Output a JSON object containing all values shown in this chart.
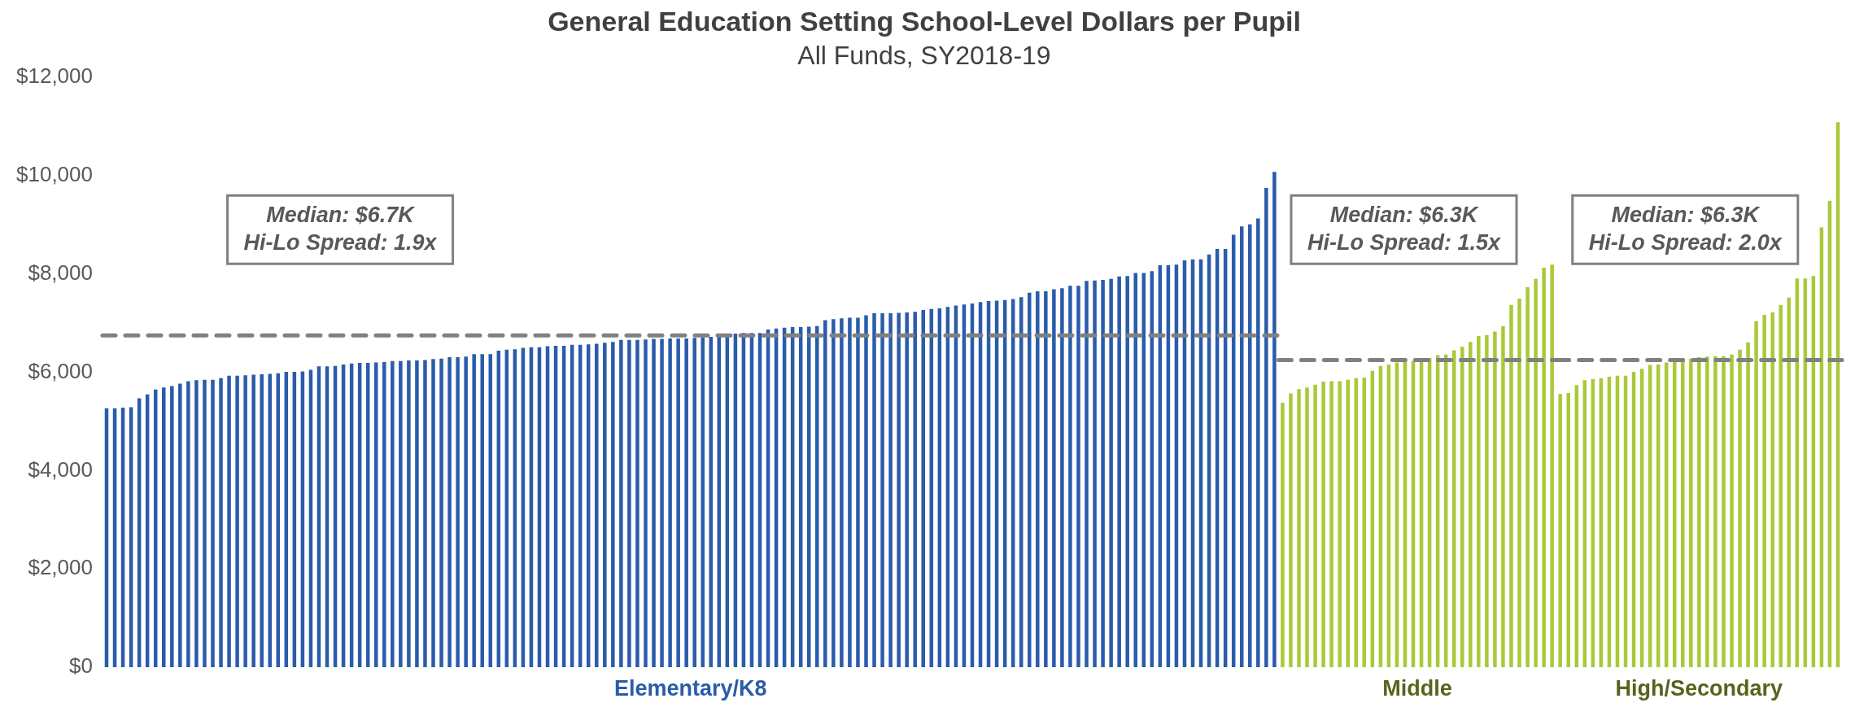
{
  "chart_data": {
    "type": "bar",
    "title": "General Education Setting School-Level Dollars per Pupil",
    "subtitle": "All Funds, SY2018-19",
    "categories": [
      null,
      null,
      null,
      null,
      null,
      null,
      null,
      null,
      null,
      null,
      null,
      null,
      null,
      null,
      null,
      null,
      null,
      null,
      null,
      null,
      null,
      null,
      null,
      null,
      null,
      null,
      null,
      null,
      null,
      null,
      null,
      null,
      null,
      null,
      null,
      null,
      null,
      null,
      null,
      null,
      null,
      null,
      null,
      null,
      null,
      null,
      null,
      null,
      null,
      null,
      null,
      null,
      null,
      null,
      null,
      null,
      null,
      null,
      null,
      null,
      null,
      null,
      null,
      null,
      null,
      null,
      null,
      null,
      null,
      null,
      null,
      null,
      null,
      null,
      null,
      null,
      null,
      null,
      null,
      null,
      null,
      null,
      null,
      null,
      null,
      null,
      null,
      null,
      null,
      null,
      null,
      null,
      null,
      null,
      null,
      null,
      null,
      null,
      null,
      null,
      null,
      null,
      null,
      null,
      null,
      null,
      null,
      null,
      null,
      null,
      null,
      null,
      null,
      null,
      null,
      null,
      null,
      null,
      null,
      null,
      null,
      null,
      null,
      null,
      null,
      null,
      null,
      null,
      null,
      null,
      null,
      null,
      null,
      null,
      null,
      null,
      null,
      null,
      null,
      null,
      null,
      null,
      null,
      null,
      null,
      null,
      null,
      null,
      null,
      null,
      null,
      null,
      null,
      null,
      null,
      null,
      null,
      null,
      null,
      null,
      null,
      null,
      null,
      null,
      null,
      null,
      null,
      null,
      null,
      null,
      null,
      null,
      null,
      null,
      null,
      null,
      null,
      null,
      null,
      null,
      null,
      null,
      null,
      null,
      null,
      null,
      null,
      null,
      null,
      null,
      null,
      null,
      null,
      null,
      null,
      null,
      null,
      null,
      null,
      null,
      null,
      null,
      null,
      null,
      null,
      null,
      null,
      null,
      null,
      null,
      null,
      null,
      null
    ],
    "values": [
      5270,
      5270,
      5280,
      5290,
      5470,
      5550,
      5650,
      5690,
      5720,
      5770,
      5820,
      5840,
      5850,
      5850,
      5880,
      5930,
      5930,
      5940,
      5950,
      5960,
      5970,
      5980,
      6010,
      6010,
      6020,
      6050,
      6120,
      6120,
      6130,
      6160,
      6180,
      6190,
      6190,
      6200,
      6210,
      6230,
      6230,
      6240,
      6240,
      6250,
      6270,
      6280,
      6310,
      6310,
      6320,
      6370,
      6370,
      6370,
      6440,
      6460,
      6470,
      6500,
      6510,
      6510,
      6530,
      6540,
      6540,
      6560,
      6560,
      6570,
      6580,
      6600,
      6620,
      6660,
      6660,
      6660,
      6670,
      6680,
      6680,
      6690,
      6690,
      6690,
      6700,
      6710,
      6720,
      6720,
      6780,
      6790,
      6800,
      6800,
      6800,
      6870,
      6890,
      6910,
      6920,
      6920,
      6930,
      6940,
      7060,
      7080,
      7100,
      7110,
      7110,
      7160,
      7200,
      7200,
      7200,
      7210,
      7220,
      7230,
      7270,
      7290,
      7300,
      7330,
      7360,
      7380,
      7400,
      7430,
      7450,
      7460,
      7470,
      7490,
      7530,
      7620,
      7650,
      7650,
      7690,
      7710,
      7760,
      7760,
      7860,
      7870,
      7880,
      7900,
      7950,
      7960,
      8020,
      8020,
      8060,
      8180,
      8180,
      8190,
      8280,
      8300,
      8300,
      8400,
      8510,
      8510,
      8800,
      8970,
      9010,
      9130,
      9750,
      10080,
      5380,
      5570,
      5660,
      5690,
      5750,
      5810,
      5820,
      5820,
      5850,
      5880,
      5890,
      6030,
      6130,
      6160,
      6200,
      6220,
      6230,
      6260,
      6290,
      6350,
      6360,
      6450,
      6520,
      6620,
      6740,
      6760,
      6830,
      6940,
      7370,
      7500,
      7730,
      7900,
      8130,
      8190,
      5560,
      5580,
      5740,
      5840,
      5860,
      5880,
      5910,
      5930,
      5930,
      6010,
      6070,
      6150,
      6160,
      6200,
      6210,
      6260,
      6280,
      6310,
      6320,
      6330,
      6330,
      6360,
      6460,
      6610,
      7040,
      7170,
      7220,
      7370,
      7520,
      7910,
      7910,
      7960,
      8950,
      9490,
      11090
    ],
    "colors": [
      "#2a5caa",
      "#2a5caa",
      "#2a5caa",
      "#2a5caa",
      "#2a5caa",
      "#2a5caa",
      "#2a5caa",
      "#2a5caa",
      "#2a5caa",
      "#2a5caa",
      "#2a5caa",
      "#2a5caa",
      "#2a5caa",
      "#2a5caa",
      "#2a5caa",
      "#2a5caa",
      "#2a5caa",
      "#2a5caa",
      "#2a5caa",
      "#2a5caa",
      "#2a5caa",
      "#2a5caa",
      "#2a5caa",
      "#2a5caa",
      "#2a5caa",
      "#2a5caa",
      "#2a5caa",
      "#2a5caa",
      "#2a5caa",
      "#2a5caa",
      "#2a5caa",
      "#2a5caa",
      "#2a5caa",
      "#2a5caa",
      "#2a5caa",
      "#2a5caa",
      "#2a5caa",
      "#2a5caa",
      "#2a5caa",
      "#2a5caa",
      "#2a5caa",
      "#2a5caa",
      "#2a5caa",
      "#2a5caa",
      "#2a5caa",
      "#2a5caa",
      "#2a5caa",
      "#2a5caa",
      "#2a5caa",
      "#2a5caa",
      "#2a5caa",
      "#2a5caa",
      "#2a5caa",
      "#2a5caa",
      "#2a5caa",
      "#2a5caa",
      "#2a5caa",
      "#2a5caa",
      "#2a5caa",
      "#2a5caa",
      "#2a5caa",
      "#2a5caa",
      "#2a5caa",
      "#2a5caa",
      "#2a5caa",
      "#2a5caa",
      "#2a5caa",
      "#2a5caa",
      "#2a5caa",
      "#2a5caa",
      "#2a5caa",
      "#2a5caa",
      "#2a5caa",
      "#2a5caa",
      "#2a5caa",
      "#2a5caa",
      "#2a5caa",
      "#2a5caa",
      "#2a5caa",
      "#2a5caa",
      "#2a5caa",
      "#2a5caa",
      "#2a5caa",
      "#2a5caa",
      "#2a5caa",
      "#2a5caa",
      "#2a5caa",
      "#2a5caa",
      "#2a5caa",
      "#2a5caa",
      "#2a5caa",
      "#2a5caa",
      "#2a5caa",
      "#2a5caa",
      "#2a5caa",
      "#2a5caa",
      "#2a5caa",
      "#2a5caa",
      "#2a5caa",
      "#2a5caa",
      "#2a5caa",
      "#2a5caa",
      "#2a5caa",
      "#2a5caa",
      "#2a5caa",
      "#2a5caa",
      "#2a5caa",
      "#2a5caa",
      "#2a5caa",
      "#2a5caa",
      "#2a5caa",
      "#2a5caa",
      "#2a5caa",
      "#2a5caa",
      "#2a5caa",
      "#2a5caa",
      "#2a5caa",
      "#2a5caa",
      "#2a5caa",
      "#2a5caa",
      "#2a5caa",
      "#2a5caa",
      "#2a5caa",
      "#2a5caa",
      "#2a5caa",
      "#2a5caa",
      "#2a5caa",
      "#2a5caa",
      "#2a5caa",
      "#2a5caa",
      "#2a5caa",
      "#2a5caa",
      "#2a5caa",
      "#2a5caa",
      "#2a5caa",
      "#2a5caa",
      "#2a5caa",
      "#2a5caa",
      "#2a5caa",
      "#2a5caa",
      "#2a5caa",
      "#2a5caa",
      "#2a5caa",
      "#2a5caa",
      "#a9c938",
      "#a9c938",
      "#a9c938",
      "#a9c938",
      "#a9c938",
      "#a9c938",
      "#a9c938",
      "#a9c938",
      "#a9c938",
      "#a9c938",
      "#a9c938",
      "#a9c938",
      "#a9c938",
      "#a9c938",
      "#a9c938",
      "#a9c938",
      "#a9c938",
      "#a9c938",
      "#a9c938",
      "#a9c938",
      "#a9c938",
      "#a9c938",
      "#a9c938",
      "#a9c938",
      "#a9c938",
      "#a9c938",
      "#a9c938",
      "#a9c938",
      "#a9c938",
      "#a9c938",
      "#a9c938",
      "#a9c938",
      "#a9c938",
      "#a9c938",
      "#a9c938",
      "#a9c938",
      "#a9c938",
      "#a9c938",
      "#a9c938",
      "#a9c938",
      "#a9c938",
      "#a9c938",
      "#a9c938",
      "#a9c938",
      "#a9c938",
      "#a9c938",
      "#a9c938",
      "#a9c938",
      "#a9c938",
      "#a9c938",
      "#a9c938",
      "#a9c938",
      "#a9c938",
      "#a9c938",
      "#a9c938",
      "#a9c938",
      "#a9c938",
      "#a9c938",
      "#a9c938",
      "#a9c938",
      "#a9c938",
      "#a9c938",
      "#a9c938",
      "#a9c938",
      "#a9c938",
      "#a9c938",
      "#a9c938",
      "#a9c938",
      "#a9c938"
    ],
    "ylim": [
      0,
      12000
    ],
    "yticks": [
      {
        "value": 0,
        "label": "$0"
      },
      {
        "value": 2000,
        "label": "$2,000"
      },
      {
        "value": 4000,
        "label": "$4,000"
      },
      {
        "value": 6000,
        "label": "$6,000"
      },
      {
        "value": 8000,
        "label": "$8,000"
      },
      {
        "value": 10000,
        "label": "$10,000"
      },
      {
        "value": 12000,
        "label": "$12,000"
      }
    ],
    "ref_lines": [
      {
        "axis": "y",
        "value": 6750,
        "color": "#808080",
        "line_style": "dashed"
      },
      {
        "axis": "y",
        "value": 6250,
        "color": "#808080",
        "line_style": "dashed"
      }
    ],
    "annotations": [
      "Median: $6.7K\nHi-Lo Spread: 1.9x",
      "Median: $6.3K\nHi-Lo Spread: 1.5x",
      "Median: $6.3K\nHi-Lo Spread: 2.0x",
      "Elementary/K8",
      "Middle",
      "High/Secondary"
    ],
    "grid": false,
    "legend": false
  }
}
